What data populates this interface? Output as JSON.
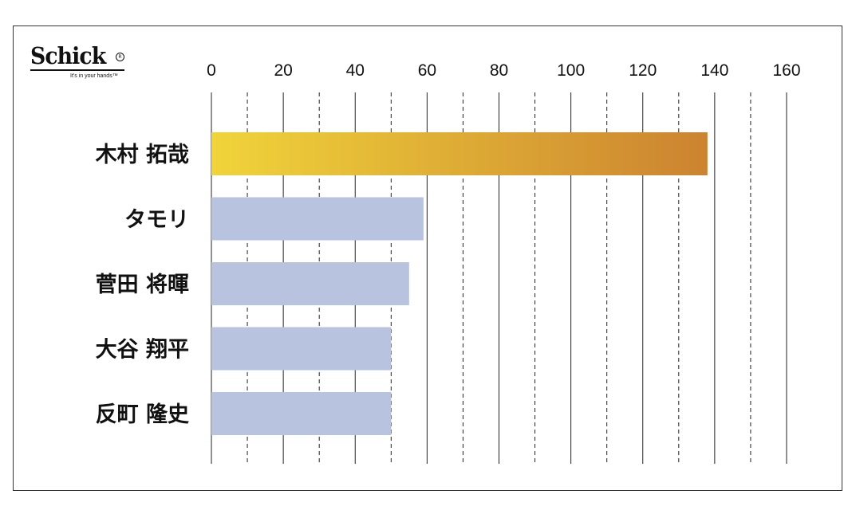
{
  "logo": {
    "word": "Schick",
    "tagline": "It's in your hands™"
  },
  "colors": {
    "highlight_start": "#f0d43a",
    "highlight_end": "#cc8330",
    "bar": "#b8c3e0",
    "grid": "#222222",
    "label": "#111111"
  },
  "chart_data": {
    "type": "bar",
    "orientation": "horizontal",
    "categories": [
      "木村 拓哉",
      "タモリ",
      "菅田 将暉",
      "大谷 翔平",
      "反町 隆史"
    ],
    "values": [
      138,
      59,
      55,
      50,
      50
    ],
    "xlim": [
      0,
      160
    ],
    "xticks": [
      0,
      20,
      40,
      60,
      80,
      100,
      120,
      140,
      160
    ],
    "minor_gridlines": "dashed at odd multiples of 10",
    "axis_position": "top",
    "highlighted_category": "木村 拓哉",
    "title": "",
    "xlabel": "",
    "ylabel": ""
  }
}
